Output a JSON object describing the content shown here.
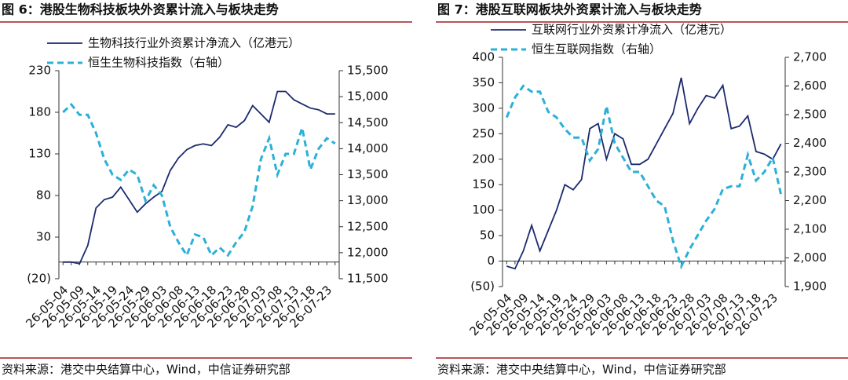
{
  "chart_data": [
    {
      "type": "line",
      "title": "图 6：港股生物科技板块外资累计流入与板块走势",
      "source": "资料来源：港交中央结算中心，Wind，中信证券研究部",
      "categories": [
        "26-05-04",
        null,
        "26-05-09",
        null,
        "26-05-14",
        null,
        "26-05-19",
        null,
        "26-05-24",
        null,
        "26-05-29",
        null,
        "26-06-03",
        null,
        "26-06-08",
        null,
        "26-06-13",
        null,
        "26-06-18",
        null,
        "26-06-23",
        null,
        "26-06-28",
        null,
        "26-07-03",
        null,
        "26-07-08",
        null,
        "26-07-13",
        null,
        "26-07-18",
        null,
        "26-07-23",
        null
      ],
      "series": [
        {
          "name": "生物科技行业外资累计净流入（亿港元）",
          "color": "#1c2a6e",
          "dash": false,
          "values": [
            0,
            0,
            -2,
            20,
            65,
            75,
            78,
            90,
            75,
            60,
            70,
            78,
            85,
            110,
            125,
            135,
            140,
            142,
            140,
            150,
            165,
            162,
            170,
            188,
            178,
            168,
            205,
            205,
            195,
            190,
            185,
            183,
            178,
            178
          ]
        },
        {
          "name": "恒生生物科技指数（右轴）",
          "color": "#2bb0d8",
          "dash": true,
          "axis": "y2",
          "values": [
            14700,
            14850,
            14650,
            14650,
            14300,
            13800,
            13500,
            13400,
            13600,
            13500,
            13000,
            13300,
            13100,
            12500,
            12200,
            11950,
            12350,
            12300,
            11950,
            12100,
            11950,
            12200,
            12400,
            12900,
            13800,
            14200,
            13500,
            13900,
            13900,
            14400,
            13600,
            14000,
            14200,
            14100
          ]
        }
      ],
      "ylim": [
        -20,
        230
      ],
      "yticks": [
        {
          "value": -20,
          "label": "(20)"
        },
        30,
        80,
        130,
        180,
        230
      ],
      "y2lim": [
        11500,
        15500
      ],
      "y2ticks": [
        {
          "value": 11500,
          "label": "11,500"
        },
        {
          "value": 12000,
          "label": "12,000"
        },
        {
          "value": 12500,
          "label": "12,500"
        },
        {
          "value": 13000,
          "label": "13,000"
        },
        {
          "value": 13500,
          "label": "13,500"
        },
        {
          "value": 14000,
          "label": "14,000"
        },
        {
          "value": 14500,
          "label": "14,500"
        },
        {
          "value": 15000,
          "label": "15,000"
        },
        {
          "value": 15500,
          "label": "15,500"
        }
      ],
      "legend": "top-left"
    },
    {
      "type": "line",
      "title": "图 7：港股互联网板块外资累计流入与板块走势",
      "source": "资料来源：港交中央结算中心，Wind，中信证券研究部",
      "categories": [
        "26-05-04",
        null,
        "26-05-09",
        null,
        "26-05-14",
        null,
        "26-05-19",
        null,
        "26-05-24",
        null,
        "26-05-29",
        null,
        "26-06-03",
        null,
        "26-06-08",
        null,
        "26-06-13",
        null,
        "26-06-18",
        null,
        "26-06-23",
        null,
        "26-06-28",
        null,
        "26-07-03",
        null,
        "26-07-08",
        null,
        "26-07-13",
        null,
        "26-07-18",
        null,
        "26-07-23",
        null
      ],
      "series": [
        {
          "name": "互联网行业外资累计净流入（亿港元）",
          "color": "#1c2a6e",
          "dash": false,
          "values": [
            -10,
            -15,
            20,
            70,
            20,
            60,
            100,
            150,
            140,
            160,
            260,
            270,
            200,
            250,
            240,
            190,
            190,
            200,
            230,
            260,
            290,
            360,
            270,
            300,
            325,
            320,
            345,
            260,
            265,
            285,
            215,
            210,
            200,
            230
          ]
        },
        {
          "name": "恒生互联网指数（右轴）",
          "color": "#2bb0d8",
          "dash": true,
          "axis": "y2",
          "values": [
            2490,
            2560,
            2600,
            2580,
            2580,
            2510,
            2490,
            2450,
            2420,
            2420,
            2340,
            2380,
            2530,
            2400,
            2350,
            2300,
            2300,
            2250,
            2200,
            2180,
            2060,
            1970,
            2030,
            2080,
            2130,
            2170,
            2240,
            2250,
            2250,
            2360,
            2270,
            2300,
            2350,
            2220
          ]
        }
      ],
      "ylim": [
        -50,
        400
      ],
      "yticks": [
        {
          "value": -50,
          "label": "(50)"
        },
        0,
        50,
        100,
        150,
        200,
        250,
        300,
        350,
        400
      ],
      "y2lim": [
        1900,
        2700
      ],
      "y2ticks": [
        {
          "value": 1900,
          "label": "1,900"
        },
        {
          "value": 2000,
          "label": "2,000"
        },
        {
          "value": 2100,
          "label": "2,100"
        },
        {
          "value": 2200,
          "label": "2,200"
        },
        {
          "value": 2300,
          "label": "2,300"
        },
        {
          "value": 2400,
          "label": "2,400"
        },
        {
          "value": 2500,
          "label": "2,500"
        },
        {
          "value": 2600,
          "label": "2,600"
        },
        {
          "value": 2700,
          "label": "2,700"
        }
      ],
      "legend": "top-left"
    }
  ]
}
